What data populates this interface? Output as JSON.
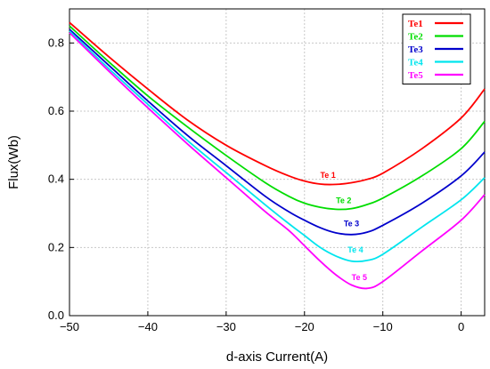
{
  "chart_data": {
    "type": "line",
    "title": "",
    "xlabel": "d-axis Current(A)",
    "ylabel": "Flux(Wb)",
    "xlim": [
      -50,
      3
    ],
    "ylim": [
      0,
      0.9
    ],
    "x_ticks": [
      -50,
      -40,
      -30,
      -20,
      -10,
      0
    ],
    "y_ticks": [
      0.0,
      0.2,
      0.4,
      0.6,
      0.8
    ],
    "x_tick_labels": [
      "−50",
      "−40",
      "−30",
      "−20",
      "−10",
      "0"
    ],
    "y_tick_labels": [
      "0.0",
      "0.2",
      "0.4",
      "0.6",
      "0.8"
    ],
    "grid": true,
    "legend_position": "top-right",
    "series": [
      {
        "name": "Te1",
        "color": "#ff0000",
        "x": [
          -50,
          -45,
          -40,
          -35,
          -30,
          -25,
          -22,
          -20,
          -18,
          -16,
          -14,
          -12,
          -10,
          -5,
          0,
          3
        ],
        "y": [
          0.86,
          0.76,
          0.665,
          0.575,
          0.5,
          0.44,
          0.41,
          0.395,
          0.386,
          0.385,
          0.39,
          0.4,
          0.418,
          0.49,
          0.58,
          0.665
        ]
      },
      {
        "name": "Te2",
        "color": "#00dd00",
        "x": [
          -50,
          -45,
          -40,
          -35,
          -30,
          -25,
          -22,
          -20,
          -18,
          -16,
          -14,
          -12,
          -10,
          -5,
          0,
          3
        ],
        "y": [
          0.85,
          0.745,
          0.645,
          0.555,
          0.47,
          0.39,
          0.35,
          0.33,
          0.318,
          0.312,
          0.314,
          0.326,
          0.345,
          0.41,
          0.49,
          0.57
        ]
      },
      {
        "name": "Te3",
        "color": "#0000cc",
        "x": [
          -50,
          -45,
          -40,
          -35,
          -30,
          -25,
          -22,
          -20,
          -18,
          -16,
          -14,
          -12,
          -10,
          -5,
          0,
          3
        ],
        "y": [
          0.84,
          0.735,
          0.63,
          0.53,
          0.44,
          0.35,
          0.305,
          0.28,
          0.258,
          0.243,
          0.238,
          0.245,
          0.265,
          0.33,
          0.41,
          0.48
        ]
      },
      {
        "name": "Te4",
        "color": "#00e5ee",
        "x": [
          -50,
          -45,
          -40,
          -35,
          -30,
          -25,
          -22,
          -20,
          -18,
          -16,
          -14,
          -12,
          -10,
          -5,
          0,
          3
        ],
        "y": [
          0.835,
          0.725,
          0.62,
          0.515,
          0.42,
          0.325,
          0.27,
          0.235,
          0.2,
          0.175,
          0.16,
          0.162,
          0.18,
          0.26,
          0.34,
          0.405
        ]
      },
      {
        "name": "Te5",
        "color": "#ff00ff",
        "x": [
          -50,
          -45,
          -40,
          -35,
          -30,
          -25,
          -22,
          -20,
          -18,
          -16,
          -14,
          -12,
          -10,
          -5,
          0,
          3
        ],
        "y": [
          0.83,
          0.718,
          0.61,
          0.505,
          0.405,
          0.305,
          0.25,
          0.205,
          0.16,
          0.12,
          0.09,
          0.08,
          0.1,
          0.19,
          0.28,
          0.355
        ]
      }
    ],
    "annotations": [
      {
        "text": "Te 1",
        "x": -17,
        "y": 0.405,
        "color": "#ff0000"
      },
      {
        "text": "Te 2",
        "x": -15,
        "y": 0.33,
        "color": "#00dd00"
      },
      {
        "text": "Te 3",
        "x": -14,
        "y": 0.262,
        "color": "#0000cc"
      },
      {
        "text": "Te 4",
        "x": -13.5,
        "y": 0.185,
        "color": "#00e5ee"
      },
      {
        "text": "Te 5",
        "x": -13,
        "y": 0.105,
        "color": "#ff00ff"
      }
    ]
  }
}
